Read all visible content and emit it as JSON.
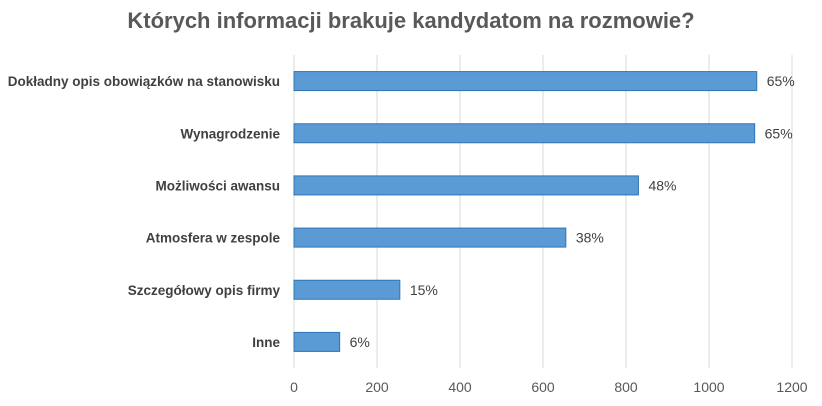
{
  "chart_data": {
    "type": "bar",
    "orientation": "horizontal",
    "title": "Których informacji brakuje kandydatom na rozmowie?",
    "categories": [
      "Dokładny opis obowiązków na stanowisku",
      "Wynagrodzenie",
      "Możliwości awansu",
      "Atmosfera w zespole",
      "Szczegółowy opis firmy",
      "Inne"
    ],
    "values": [
      1115,
      1110,
      830,
      655,
      255,
      110
    ],
    "data_labels": [
      "65%",
      "65%",
      "48%",
      "38%",
      "15%",
      "6%"
    ],
    "xlim": [
      0,
      1200
    ],
    "x_ticks": [
      "0",
      "200",
      "400",
      "600",
      "800",
      "1000",
      "1200"
    ],
    "grid": "vertical",
    "legend": "none",
    "colors": {
      "bar_fill": "#5b9bd5",
      "bar_stroke": "#2e75b6",
      "grid": "#d9d9d9"
    }
  }
}
